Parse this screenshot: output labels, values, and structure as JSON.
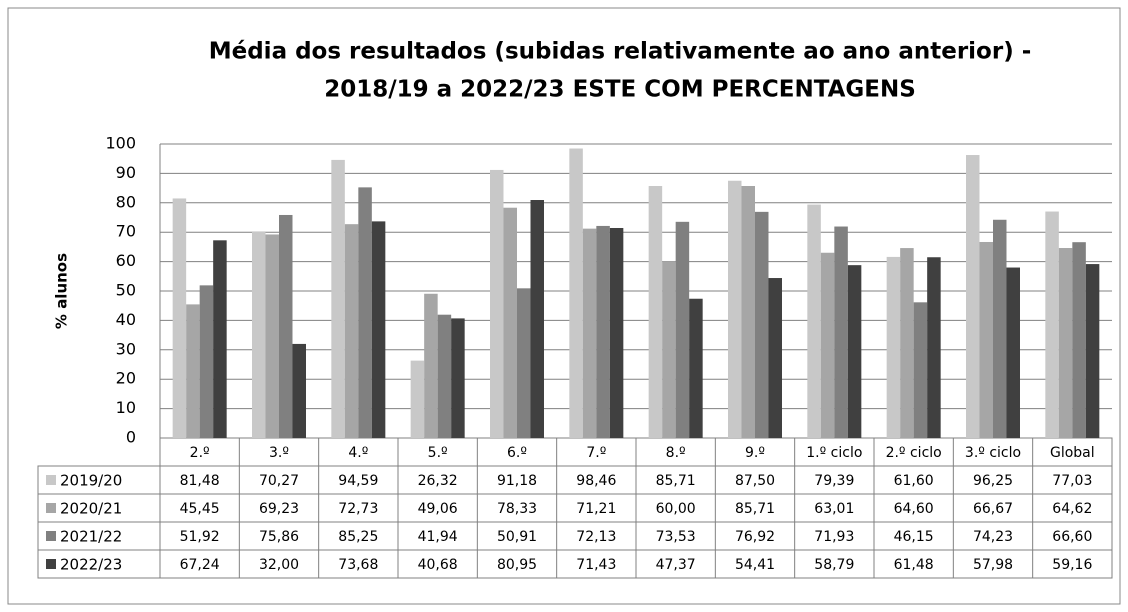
{
  "chart_data": {
    "type": "bar",
    "title": [
      "Média dos resultados (subidas relativamente ao ano anterior) -",
      "2018/19 a 2022/23 ESTE COM PERCENTAGENS"
    ],
    "y_label": "% alunos",
    "categories": [
      "2.º",
      "3.º",
      "4.º",
      "5.º",
      "6.º",
      "7.º",
      "8.º",
      "9.º",
      "1.º ciclo",
      "2.º ciclo",
      "3.º ciclo",
      "Global"
    ],
    "series": [
      {
        "name": "2019/20",
        "color": "#c8c8c8",
        "values": [
          81.48,
          70.27,
          94.59,
          26.32,
          91.18,
          98.46,
          85.71,
          87.5,
          79.39,
          61.6,
          96.25,
          77.03
        ],
        "value_labels": [
          "81,48",
          "70,27",
          "94,59",
          "26,32",
          "91,18",
          "98,46",
          "85,71",
          "87,50",
          "79,39",
          "61,60",
          "96,25",
          "77,03"
        ]
      },
      {
        "name": "2020/21",
        "color": "#a6a6a6",
        "values": [
          45.45,
          69.23,
          72.73,
          49.06,
          78.33,
          71.21,
          60.0,
          85.71,
          63.01,
          64.6,
          66.67,
          64.62
        ],
        "value_labels": [
          "45,45",
          "69,23",
          "72,73",
          "49,06",
          "78,33",
          "71,21",
          "60,00",
          "85,71",
          "63,01",
          "64,60",
          "66,67",
          "64,62"
        ]
      },
      {
        "name": "2021/22",
        "color": "#808080",
        "values": [
          51.92,
          75.86,
          85.25,
          41.94,
          50.91,
          72.13,
          73.53,
          76.92,
          71.93,
          46.15,
          74.23,
          66.6
        ],
        "value_labels": [
          "51,92",
          "75,86",
          "85,25",
          "41,94",
          "50,91",
          "72,13",
          "73,53",
          "76,92",
          "71,93",
          "46,15",
          "74,23",
          "66,60"
        ]
      },
      {
        "name": "2022/23",
        "color": "#404040",
        "values": [
          67.24,
          32.0,
          73.68,
          40.68,
          80.95,
          71.43,
          47.37,
          54.41,
          58.79,
          61.48,
          57.98,
          59.16
        ],
        "value_labels": [
          "67,24",
          "32,00",
          "73,68",
          "40,68",
          "80,95",
          "71,43",
          "47,37",
          "54,41",
          "58,79",
          "61,48",
          "57,98",
          "59,16"
        ]
      }
    ],
    "ylim": [
      0,
      100
    ],
    "yticks": [
      0,
      10,
      20,
      30,
      40,
      50,
      60,
      70,
      80,
      90,
      100
    ],
    "grid": true
  }
}
